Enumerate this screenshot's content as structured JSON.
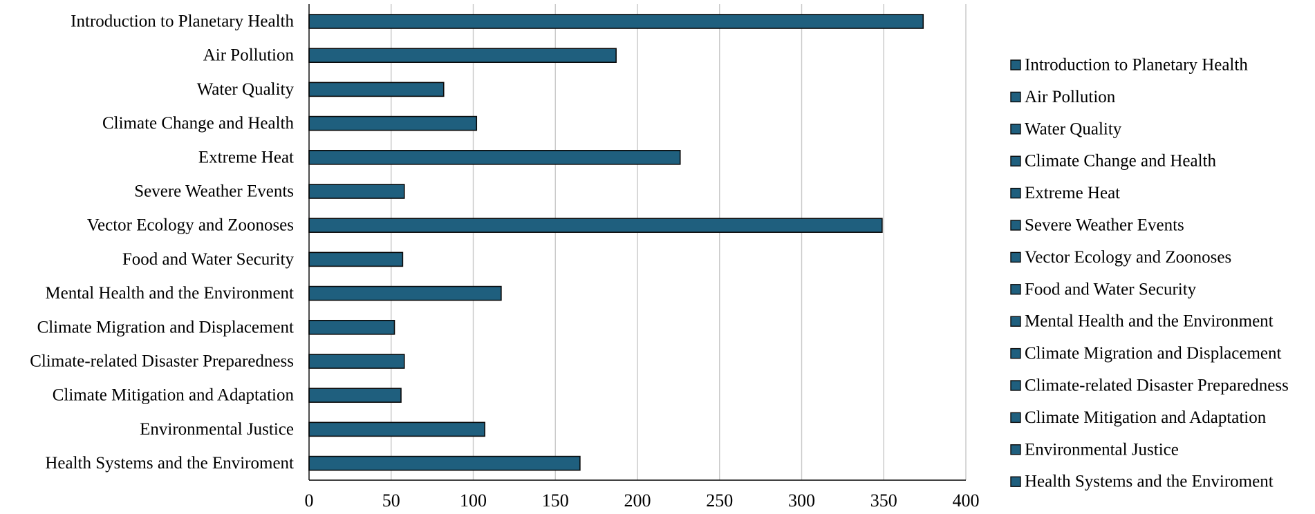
{
  "chart_data": {
    "type": "bar",
    "orientation": "horizontal",
    "title": "",
    "xlabel": "",
    "ylabel": "",
    "categories": [
      "Introduction to Planetary Health",
      "Air Pollution",
      "Water Quality",
      "Climate Change and Health",
      "Extreme Heat",
      "Severe Weather Events",
      "Vector Ecology and Zoonoses",
      "Food and Water Security",
      "Mental Health and the Environment",
      "Climate Migration and Displacement",
      "Climate-related Disaster Preparedness",
      "Climate Mitigation and Adaptation",
      "Environmental Justice",
      "Health Systems and the Enviroment"
    ],
    "values": [
      374,
      187,
      82,
      102,
      226,
      58,
      349,
      57,
      117,
      52,
      58,
      56,
      107,
      165
    ],
    "xlim": [
      0,
      400
    ],
    "xticks": [
      "0",
      "50",
      "100",
      "150",
      "200",
      "250",
      "300",
      "350",
      "400"
    ],
    "xtick_values": [
      0,
      50,
      100,
      150,
      200,
      250,
      300,
      350,
      400
    ],
    "grid": "vertical",
    "legend": {
      "placement": "right",
      "entries": [
        "Introduction to Planetary Health",
        "Air Pollution",
        "Water Quality",
        "Climate Change and Health",
        "Extreme Heat",
        "Severe Weather Events",
        "Vector Ecology and Zoonoses",
        "Food and Water Security",
        "Mental Health and the Environment",
        "Climate Migration and Displacement",
        "Climate-related Disaster Preparedness",
        "Climate Mitigation and Adaptation",
        "Environmental Justice",
        "Health Systems and the Enviroment"
      ]
    },
    "colors": {
      "bar_fill": "#1f5f7e",
      "bar_stroke": "#0a0a0a",
      "grid": "#c8c8c8",
      "axis": "#000000"
    }
  }
}
